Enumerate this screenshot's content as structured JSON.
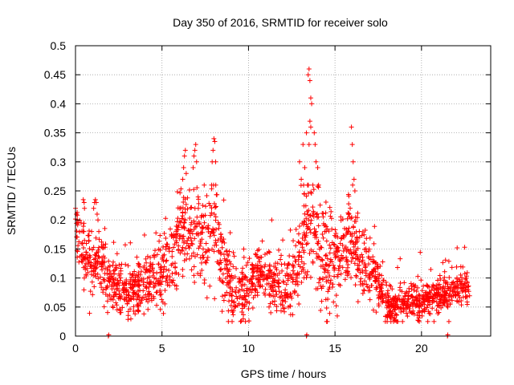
{
  "chart_data": {
    "type": "scatter",
    "title": "Day 350 of 2016, SRMTID for receiver solo",
    "xlabel": "GPS time / hours",
    "ylabel": "SRMTID / TECUs",
    "xlim": [
      0,
      24
    ],
    "ylim": [
      0,
      0.5
    ],
    "grid": true,
    "marker": "+",
    "color": "#ff0000",
    "x_ticks": [
      0,
      5,
      10,
      15,
      20
    ],
    "x_tick_labels": [
      "0",
      "5",
      "10",
      "15",
      "20"
    ],
    "y_ticks": [
      0,
      0.05,
      0.1,
      0.15,
      0.2,
      0.25,
      0.3,
      0.35,
      0.4,
      0.45,
      0.5
    ],
    "y_tick_labels": [
      "0",
      "0.05",
      "0.1",
      "0.15",
      "0.2",
      "0.25",
      "0.3",
      "0.35",
      "0.4",
      "0.45",
      "0.5"
    ],
    "trend": {
      "x": [
        0,
        0.3,
        0.6,
        1.0,
        1.5,
        2.0,
        2.5,
        3.0,
        3.5,
        4.0,
        4.5,
        5.0,
        5.5,
        6.0,
        6.5,
        7.0,
        7.5,
        8.0,
        8.5,
        9.0,
        9.5,
        10.0,
        10.5,
        11.0,
        11.5,
        12.0,
        12.5,
        13.0,
        13.5,
        14.0,
        14.5,
        15.0,
        15.5,
        16.0,
        16.5,
        17.0,
        17.5,
        18.0,
        18.5,
        19.0,
        19.5,
        20.0,
        20.5,
        21.0,
        21.5,
        22.0,
        22.5,
        22.8
      ],
      "y": [
        0.19,
        0.15,
        0.13,
        0.12,
        0.13,
        0.09,
        0.08,
        0.07,
        0.08,
        0.09,
        0.1,
        0.1,
        0.13,
        0.17,
        0.19,
        0.18,
        0.16,
        0.19,
        0.13,
        0.09,
        0.07,
        0.08,
        0.11,
        0.1,
        0.09,
        0.08,
        0.09,
        0.14,
        0.2,
        0.17,
        0.12,
        0.11,
        0.15,
        0.16,
        0.13,
        0.12,
        0.09,
        0.05,
        0.05,
        0.055,
        0.06,
        0.06,
        0.065,
        0.07,
        0.075,
        0.08,
        0.09,
        0.08
      ]
    },
    "spread": {
      "x": [
        0,
        2,
        4,
        6,
        8,
        10,
        12,
        14,
        16,
        18,
        20,
        22,
        23
      ],
      "y": [
        0.045,
        0.03,
        0.03,
        0.05,
        0.05,
        0.03,
        0.035,
        0.06,
        0.05,
        0.02,
        0.018,
        0.022,
        0.02
      ]
    },
    "peaks": [
      {
        "x": [
          0.0,
          0.05,
          0.1
        ],
        "y": [
          0.22,
          0.21,
          0.2
        ]
      },
      {
        "x": [
          0.45,
          0.5,
          0.52
        ],
        "y": [
          0.235,
          0.23,
          0.22
        ]
      },
      {
        "x": [
          1.05,
          1.1,
          1.15,
          1.2,
          1.25,
          1.3,
          1.35
        ],
        "y": [
          0.22,
          0.23,
          0.235,
          0.23,
          0.21,
          0.2,
          0.18
        ]
      },
      {
        "x": [
          6.2,
          6.25,
          6.3,
          6.35,
          6.4
        ],
        "y": [
          0.27,
          0.29,
          0.31,
          0.32,
          0.28
        ]
      },
      {
        "x": [
          6.8,
          6.85,
          6.9,
          6.95,
          7.0
        ],
        "y": [
          0.29,
          0.31,
          0.32,
          0.33,
          0.3
        ]
      },
      {
        "x": [
          7.9,
          7.95,
          8.0,
          8.05,
          8.1
        ],
        "y": [
          0.3,
          0.32,
          0.34,
          0.335,
          0.3
        ]
      },
      {
        "x": [
          12.95,
          13.05,
          13.15,
          13.25,
          13.35
        ],
        "y": [
          0.3,
          0.27,
          0.33,
          0.29,
          0.35
        ]
      },
      {
        "x": [
          13.45,
          13.5,
          13.55,
          13.6,
          13.65,
          13.5,
          13.55,
          13.6
        ],
        "y": [
          0.45,
          0.46,
          0.44,
          0.41,
          0.4,
          0.33,
          0.37,
          0.36
        ]
      },
      {
        "x": [
          13.8,
          13.85,
          13.9,
          14.0,
          14.05
        ],
        "y": [
          0.35,
          0.33,
          0.3,
          0.29,
          0.26
        ]
      },
      {
        "x": [
          15.95,
          16.0,
          16.05,
          16.1,
          16.15
        ],
        "y": [
          0.36,
          0.33,
          0.3,
          0.27,
          0.25
        ]
      }
    ],
    "seed": 350,
    "points_per_hour": 90,
    "x_end": 22.8,
    "zero_marks_x": [
      1.9,
      13.35,
      21.5
    ]
  }
}
